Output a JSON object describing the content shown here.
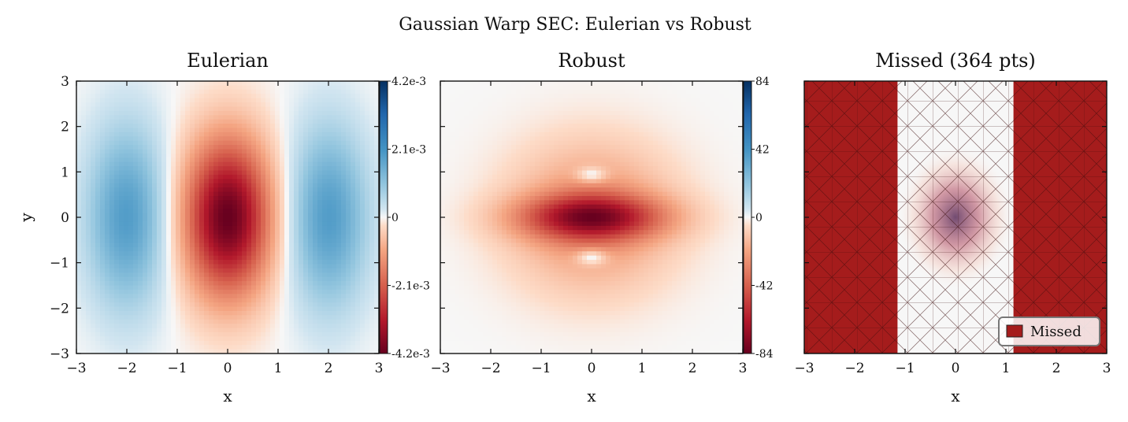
{
  "suptitle": "Gaussian Warp SEC: Eulerian vs Robust",
  "colors": {
    "cmap_low": "#67001f",
    "cmap_mid": "#f7f7f7",
    "cmap_high": "#053061",
    "missed_fill": "#a51c1c",
    "missed_mesh": "#5a0f0f",
    "legend_edge": "#777777"
  },
  "chart_data": [
    {
      "type": "heatmap",
      "title": "Eulerian",
      "xlabel": "x",
      "ylabel": "y",
      "xlim": [
        -3,
        3
      ],
      "ylim": [
        -3,
        3
      ],
      "xticks": [
        "−3",
        "−2",
        "−1",
        "0",
        "1",
        "2",
        "3"
      ],
      "yticks": [
        "−3",
        "−2",
        "−1",
        "0",
        "1",
        "2",
        "3"
      ],
      "colorbar": {
        "range": [
          -0.0042,
          0.0042
        ],
        "tick_labels": [
          "4.2e-3",
          "2.1e-3",
          "0",
          "-2.1e-3",
          "-4.2e-3"
        ]
      },
      "features": [
        {
          "kind": "trough",
          "center": [
            0,
            0
          ],
          "sigma": [
            0.6,
            1.2
          ],
          "min": -0.0042
        },
        {
          "kind": "lobe",
          "center": [
            -2,
            0
          ],
          "sigma": [
            0.55,
            1.4
          ],
          "max": 0.0019
        },
        {
          "kind": "lobe",
          "center": [
            2,
            0
          ],
          "sigma": [
            0.55,
            1.4
          ],
          "max": 0.0019
        }
      ]
    },
    {
      "type": "heatmap",
      "title": "Robust",
      "xlabel": "x",
      "ylabel": "",
      "xlim": [
        -3,
        3
      ],
      "ylim": [
        -3,
        3
      ],
      "xticks": [
        "−3",
        "−2",
        "−1",
        "0",
        "1",
        "2",
        "3"
      ],
      "yticks": [],
      "colorbar": {
        "range": [
          -84,
          84
        ],
        "tick_labels": [
          "84",
          "42",
          "0",
          "-42",
          "-84"
        ]
      },
      "features": [
        {
          "kind": "ring",
          "center": [
            0,
            0
          ],
          "radius": 1.7,
          "value": -28
        },
        {
          "kind": "band",
          "center": [
            0,
            0
          ],
          "sigma": [
            1.0,
            0.35
          ],
          "min": -84
        },
        {
          "kind": "hole",
          "center": [
            0,
            0.95
          ]
        },
        {
          "kind": "hole",
          "center": [
            0,
            -0.9
          ]
        }
      ]
    },
    {
      "type": "heatmap",
      "title": "Missed (364 pts)",
      "xlabel": "x",
      "ylabel": "",
      "xlim": [
        -3,
        3
      ],
      "ylim": [
        -3,
        3
      ],
      "xticks": [
        "−3",
        "−2",
        "−1",
        "0",
        "1",
        "2",
        "3"
      ],
      "yticks": [],
      "missed_points": 364,
      "missed_regions": [
        {
          "x": [
            -3,
            -1.15
          ],
          "y": [
            -3,
            3
          ]
        },
        {
          "x": [
            1.15,
            3
          ],
          "y": [
            -3,
            3
          ]
        },
        {
          "x": [
            -1.15,
            -1.4
          ],
          "y": [
            -1.4,
            1.4
          ]
        },
        {
          "x": [
            1.15,
            1.4
          ],
          "y": [
            -1.4,
            1.4
          ]
        }
      ],
      "legend": {
        "label": "Missed",
        "placement": "lower right"
      }
    }
  ]
}
